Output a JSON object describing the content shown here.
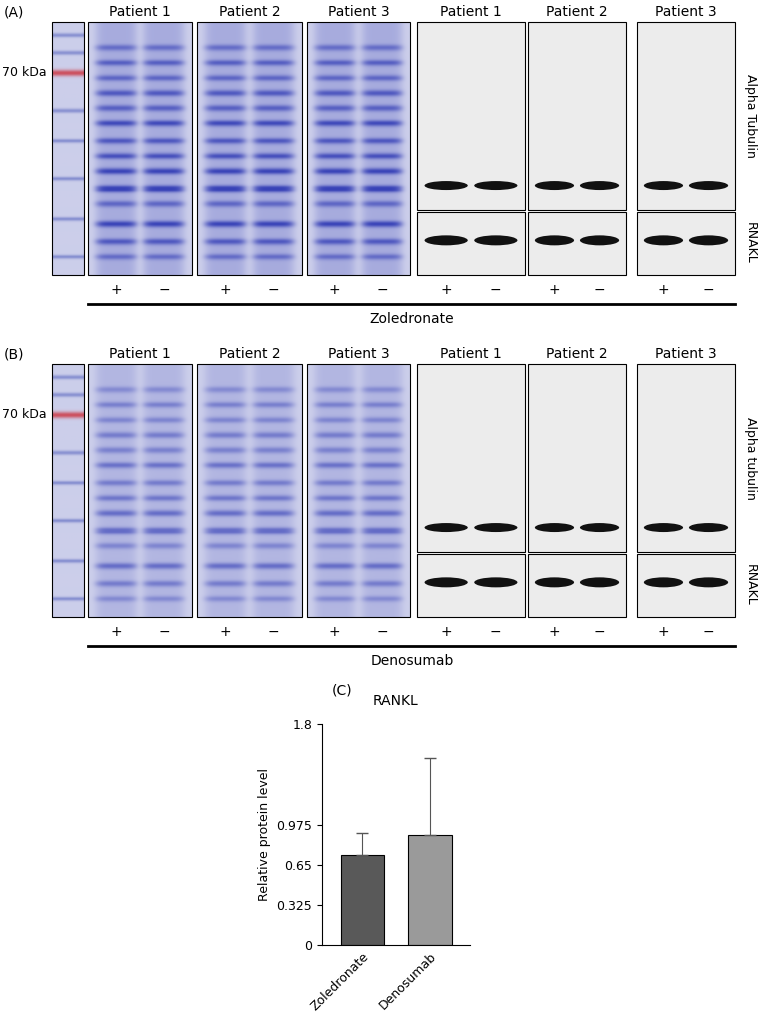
{
  "panels": [
    {
      "label": "(A)",
      "marker_label": "70 kDa",
      "patients": [
        "Patient 1",
        "Patient 2",
        "Patient 3"
      ],
      "blots": [
        "Alpha Tubulin",
        "RNAKL"
      ],
      "lanes": [
        "+",
        "−"
      ],
      "treatment": "Zoledronate"
    },
    {
      "label": "(B)",
      "marker_label": "70 kDa",
      "patients": [
        "Patient 1",
        "Patient 2",
        "Patient 3"
      ],
      "blots": [
        "Alpha tubulin",
        "RNAKL"
      ],
      "lanes": [
        "+",
        "−"
      ],
      "treatment": "Denosumab"
    }
  ],
  "chart_data": {
    "type": "bar",
    "panel_label": "(C)",
    "title": "RANKL",
    "categories": [
      "Zoledronate",
      "Denosumab"
    ],
    "values": [
      0.73,
      0.9
    ],
    "errors": [
      0.18,
      0.62
    ],
    "colors": [
      "#595959",
      "#9a9a9a"
    ],
    "ylabel": "Relative protein level",
    "ylim": [
      0,
      1.8
    ],
    "yticks": [
      0,
      0.325,
      0.65,
      0.975,
      1.8
    ]
  }
}
